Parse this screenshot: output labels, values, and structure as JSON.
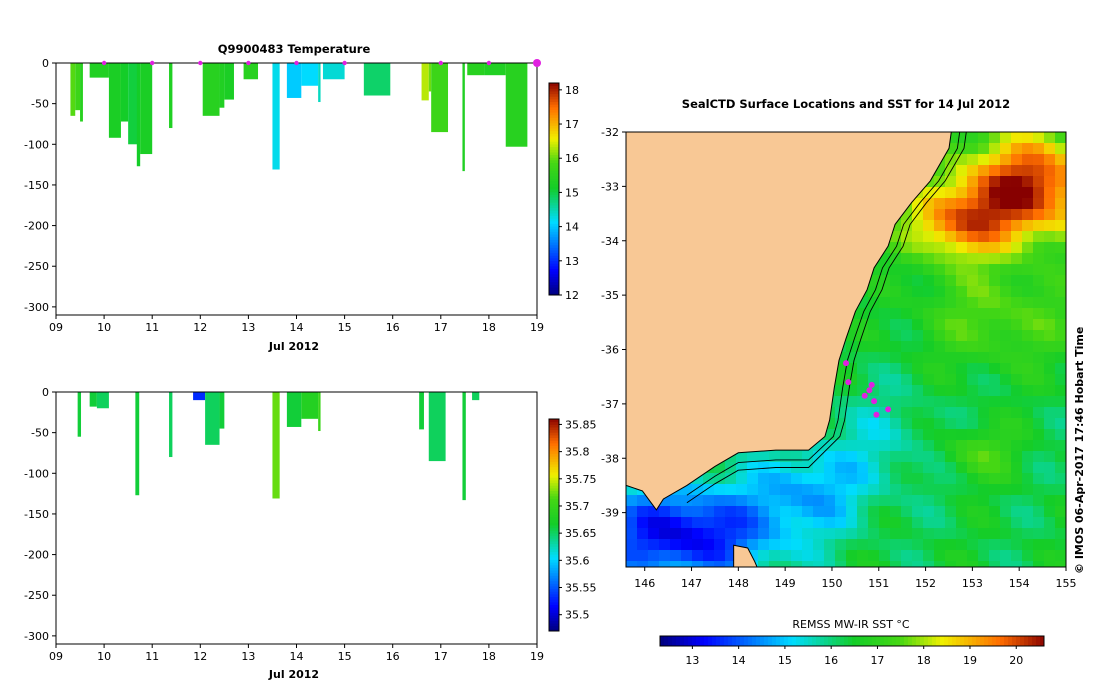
{
  "chart_data": [
    {
      "type": "heatmap",
      "title": "Q9900483  Temperature",
      "xlabel": "Jul 2012",
      "ylabel": "",
      "xlim": [
        9,
        19
      ],
      "ylim": [
        -310,
        0
      ],
      "xticks": [
        "09",
        "10",
        "11",
        "12",
        "13",
        "14",
        "15",
        "16",
        "17",
        "18",
        "19"
      ],
      "yticks": [
        "0",
        "-50",
        "-100",
        "-150",
        "-200",
        "-250",
        "-300"
      ],
      "colorbar": {
        "min": 12,
        "max": 18.2,
        "ticks": [
          "12",
          "13",
          "14",
          "15",
          "16",
          "17",
          "18"
        ]
      },
      "surface_markers": [
        10,
        11,
        12,
        13,
        14,
        15,
        17,
        18,
        19
      ],
      "profiles": [
        {
          "t0": 9.3,
          "t1": 9.4,
          "depth": 65,
          "value": 15.9
        },
        {
          "t0": 9.4,
          "t1": 9.5,
          "depth": 58,
          "value": 15.7
        },
        {
          "t0": 9.5,
          "t1": 9.56,
          "depth": 72,
          "value": 15.4
        },
        {
          "t0": 9.7,
          "t1": 10.1,
          "depth": 18,
          "value": 15.3
        },
        {
          "t0": 10.1,
          "t1": 10.35,
          "depth": 92,
          "value": 15.2
        },
        {
          "t0": 10.35,
          "t1": 10.5,
          "depth": 72,
          "value": 15.1
        },
        {
          "t0": 10.5,
          "t1": 10.7,
          "depth": 100,
          "value": 15.0
        },
        {
          "t0": 10.68,
          "t1": 10.75,
          "depth": 127,
          "value": 15.1
        },
        {
          "t0": 10.75,
          "t1": 11.0,
          "depth": 112,
          "value": 15.2
        },
        {
          "t0": 11.35,
          "t1": 11.42,
          "depth": 80,
          "value": 15.3
        },
        {
          "t0": 12.05,
          "t1": 12.4,
          "depth": 65,
          "value": 15.4
        },
        {
          "t0": 12.4,
          "t1": 12.5,
          "depth": 55,
          "value": 15.3
        },
        {
          "t0": 12.5,
          "t1": 12.7,
          "depth": 45,
          "value": 15.2
        },
        {
          "t0": 12.9,
          "t1": 13.2,
          "depth": 20,
          "value": 15.4
        },
        {
          "t0": 13.5,
          "t1": 13.65,
          "depth": 131,
          "value": 14.2
        },
        {
          "t0": 13.8,
          "t1": 14.1,
          "depth": 43,
          "value": 14.0
        },
        {
          "t0": 14.1,
          "t1": 14.45,
          "depth": 28,
          "value": 14.1
        },
        {
          "t0": 14.45,
          "t1": 14.5,
          "depth": 48,
          "value": 14.4
        },
        {
          "t0": 14.55,
          "t1": 15.0,
          "depth": 20,
          "value": 14.3
        },
        {
          "t0": 15.4,
          "t1": 15.95,
          "depth": 40,
          "value": 14.8
        },
        {
          "t0": 16.6,
          "t1": 16.75,
          "depth": 46,
          "value": 16.3
        },
        {
          "t0": 16.75,
          "t1": 16.8,
          "depth": 35,
          "value": 16.0
        },
        {
          "t0": 16.8,
          "t1": 17.15,
          "depth": 85,
          "value": 15.7
        },
        {
          "t0": 17.45,
          "t1": 17.5,
          "depth": 133,
          "value": 15.3
        },
        {
          "t0": 17.55,
          "t1": 17.9,
          "depth": 15,
          "value": 15.4
        },
        {
          "t0": 17.9,
          "t1": 18.35,
          "depth": 15,
          "value": 15.3
        },
        {
          "t0": 18.35,
          "t1": 18.8,
          "depth": 103,
          "value": 15.4
        }
      ]
    },
    {
      "type": "heatmap",
      "title": "",
      "xlabel": "Jul 2012",
      "ylabel": "",
      "xlim": [
        9,
        19
      ],
      "ylim": [
        -310,
        0
      ],
      "xticks": [
        "09",
        "10",
        "11",
        "12",
        "13",
        "14",
        "15",
        "16",
        "17",
        "18",
        "19"
      ],
      "yticks": [
        "0",
        "-50",
        "-100",
        "-150",
        "-200",
        "-250",
        "-300"
      ],
      "colorbar": {
        "min": 35.47,
        "max": 35.86,
        "ticks": [
          "35.5",
          "35.55",
          "35.6",
          "35.65",
          "35.7",
          "35.75",
          "35.8",
          "35.85"
        ]
      },
      "profiles": [
        {
          "t0": 9.45,
          "t1": 9.52,
          "depth": 55,
          "value": 35.66
        },
        {
          "t0": 9.7,
          "t1": 9.85,
          "depth": 18,
          "value": 35.66
        },
        {
          "t0": 9.85,
          "t1": 10.1,
          "depth": 20,
          "value": 35.65
        },
        {
          "t0": 10.65,
          "t1": 10.73,
          "depth": 127,
          "value": 35.66
        },
        {
          "t0": 11.35,
          "t1": 11.42,
          "depth": 80,
          "value": 35.65
        },
        {
          "t0": 11.85,
          "t1": 12.1,
          "depth": 10,
          "value": 35.53
        },
        {
          "t0": 12.1,
          "t1": 12.4,
          "depth": 65,
          "value": 35.65
        },
        {
          "t0": 12.4,
          "t1": 12.5,
          "depth": 45,
          "value": 35.66
        },
        {
          "t0": 13.5,
          "t1": 13.65,
          "depth": 131,
          "value": 35.72
        },
        {
          "t0": 13.8,
          "t1": 14.1,
          "depth": 43,
          "value": 35.66
        },
        {
          "t0": 14.1,
          "t1": 14.45,
          "depth": 33,
          "value": 35.68
        },
        {
          "t0": 14.45,
          "t1": 14.5,
          "depth": 48,
          "value": 35.7
        },
        {
          "t0": 16.55,
          "t1": 16.65,
          "depth": 46,
          "value": 35.66
        },
        {
          "t0": 16.75,
          "t1": 17.1,
          "depth": 85,
          "value": 35.65
        },
        {
          "t0": 17.45,
          "t1": 17.52,
          "depth": 133,
          "value": 35.66
        },
        {
          "t0": 17.65,
          "t1": 17.8,
          "depth": 10,
          "value": 35.65
        }
      ]
    },
    {
      "type": "heatmap",
      "title": "SealCTD Surface Locations and SST for 14 Jul 2012",
      "xlabel": "",
      "ylabel": "",
      "xlim": [
        145.6,
        155.0
      ],
      "ylim": [
        -40.0,
        -32.0
      ],
      "xticks": [
        "146",
        "147",
        "148",
        "149",
        "150",
        "151",
        "152",
        "153",
        "154",
        "155"
      ],
      "yticks": [
        "-32",
        "-33",
        "-34",
        "-35",
        "-36",
        "-37",
        "-38",
        "-39"
      ],
      "side_note": "© IMOS 06-Apr-2017 17:46 Hobart Time",
      "colorbar": {
        "label": "REMSS MW-IR SST °C",
        "min": 12.3,
        "max": 20.6,
        "ticks": [
          "13",
          "14",
          "15",
          "16",
          "17",
          "18",
          "19",
          "20"
        ]
      },
      "seal_locations": [
        {
          "lon": 150.3,
          "lat": -36.25
        },
        {
          "lon": 150.35,
          "lat": -36.6
        },
        {
          "lon": 150.7,
          "lat": -36.85
        },
        {
          "lon": 150.8,
          "lat": -36.75
        },
        {
          "lon": 150.85,
          "lat": -36.65
        },
        {
          "lon": 150.9,
          "lat": -36.95
        },
        {
          "lon": 150.95,
          "lat": -37.2
        },
        {
          "lon": 151.2,
          "lat": -37.1
        }
      ]
    }
  ]
}
